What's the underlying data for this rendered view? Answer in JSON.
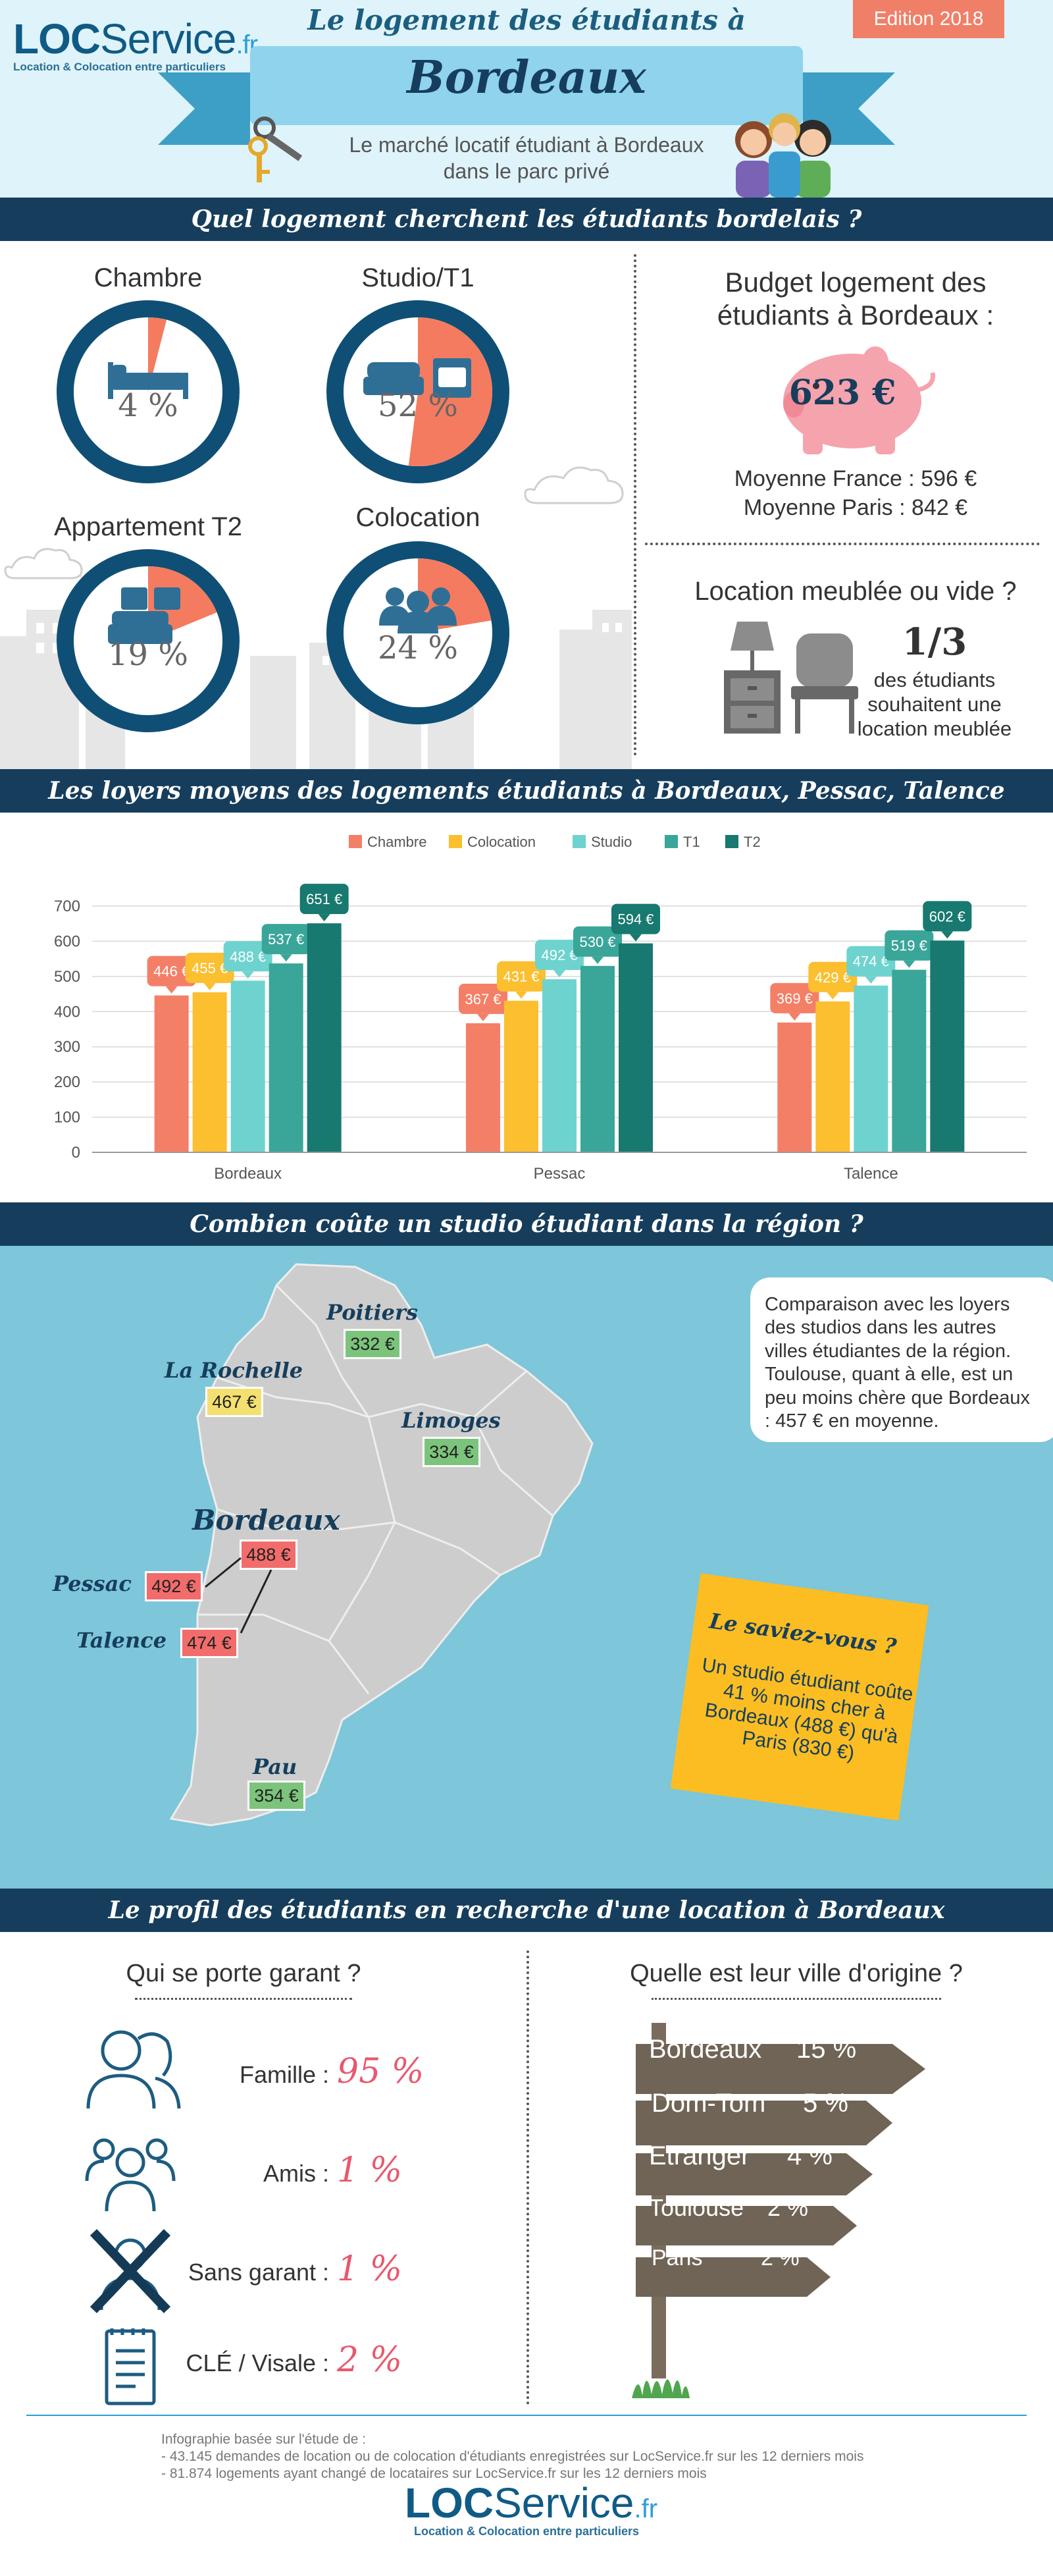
{
  "header": {
    "logo_bold": "LOC",
    "logo_light": "Service",
    "logo_fr": ".fr",
    "logo_tagline": "Location & Colocation entre particuliers",
    "edition": "Edition 2018",
    "title_line1": "Le logement des étudiants à",
    "title_line2": "Bordeaux",
    "subtitle": "Le marché locatif étudiant à Bordeaux dans le parc privé"
  },
  "section1": {
    "bar_title": "Quel logement cherchent les étudiants bordelais ?",
    "types": [
      {
        "label": "Chambre",
        "pct_text": "4 %",
        "pct": 4
      },
      {
        "label": "Studio/T1",
        "pct_text": "52 %",
        "pct": 52
      },
      {
        "label": "Appartement T2",
        "pct_text": "19 %",
        "pct": 19
      },
      {
        "label": "Colocation",
        "pct_text": "24 %",
        "pct": 24
      }
    ],
    "budget_title": "Budget logement des étudiants à Bordeaux :",
    "budget_value": "623 €",
    "avg_france": "Moyenne France : 596 €",
    "avg_paris": "Moyenne Paris : 842 €",
    "meuble_title": "Location meublée ou vide ?",
    "meuble_fraction": "1/3",
    "meuble_text": "des étudiants souhaitent une location meublée",
    "colors": {
      "ring": "#0f4f75",
      "fill": "#f47b5f"
    }
  },
  "section2": {
    "bar_title": "Les loyers moyens des logements étudiants à Bordeaux, Pessac, Talence"
  },
  "chart_data": {
    "type": "bar",
    "categories": [
      "Bordeaux",
      "Pessac",
      "Talence"
    ],
    "series": [
      {
        "name": "Chambre",
        "values": [
          446,
          367,
          369
        ],
        "color": "#f47f67"
      },
      {
        "name": "Colocation",
        "values": [
          455,
          431,
          429
        ],
        "color": "#fbbf2f"
      },
      {
        "name": "Studio",
        "values": [
          488,
          492,
          474
        ],
        "color": "#6ed3cf"
      },
      {
        "name": "T1",
        "values": [
          537,
          530,
          519
        ],
        "color": "#3aa69a"
      },
      {
        "name": "T2",
        "values": [
          651,
          594,
          602
        ],
        "color": "#17796f"
      }
    ],
    "value_unit": " €",
    "yticks": [
      "0",
      "100",
      "200",
      "300",
      "400",
      "500",
      "600",
      "700"
    ],
    "ylim": [
      0,
      700
    ],
    "legend_position": "top-center",
    "grid": true
  },
  "section3": {
    "bar_title": "Combien coûte un studio étudiant dans la région ?",
    "cities": [
      {
        "name": "Poitiers",
        "price": "332 €"
      },
      {
        "name": "La Rochelle",
        "price": "467 €"
      },
      {
        "name": "Limoges",
        "price": "334 €"
      },
      {
        "name": "Bordeaux",
        "price": "488 €"
      },
      {
        "name": "Pessac",
        "price": "492 €"
      },
      {
        "name": "Talence",
        "price": "474 €"
      },
      {
        "name": "Pau",
        "price": "354 €"
      }
    ],
    "compare_text": "Comparaison avec les loyers des studios dans les autres villes étudiantes de la région. Toulouse, quant à elle, est un peu moins chère que Bordeaux : 457 € en moyenne.",
    "saviez_title": "Le saviez-vous ?",
    "saviez_text": "Un studio étudiant coûte 41 % moins cher à Bordeaux (488 €) qu'à Paris (830 €)"
  },
  "section4": {
    "bar_title": "Le profil des étudiants en recherche d'une location à Bordeaux",
    "garant_title": "Qui se porte garant ?",
    "garants": [
      {
        "label": "Famille :",
        "pct": "95 %",
        "icon": "family-icon"
      },
      {
        "label": "Amis :",
        "pct": "1 %",
        "icon": "friends-icon"
      },
      {
        "label": "Sans garant :",
        "pct": "1 %",
        "icon": "no-guarantor-icon"
      },
      {
        "label": "CLÉ / Visale :",
        "pct": "2 %",
        "icon": "document-icon"
      }
    ],
    "origin_title": "Quelle est leur ville d'origine ?",
    "origins": [
      {
        "city": "Bordeaux",
        "pct": "15 %"
      },
      {
        "city": "Dom-Tom",
        "pct": "5 %"
      },
      {
        "city": "Etranger",
        "pct": "4 %"
      },
      {
        "city": "Toulouse",
        "pct": "2 %"
      },
      {
        "city": "Paris",
        "pct": "2 %"
      }
    ],
    "footnote_title": "Infographie basée sur l'étude de :",
    "footnote_1": "- 43.145 demandes de location ou de colocation d'étudiants enregistrées sur LocService.fr sur les 12 derniers mois",
    "footnote_2": "- 81.874 logements ayant changé de locataires sur LocService.fr sur les 12 derniers mois"
  }
}
